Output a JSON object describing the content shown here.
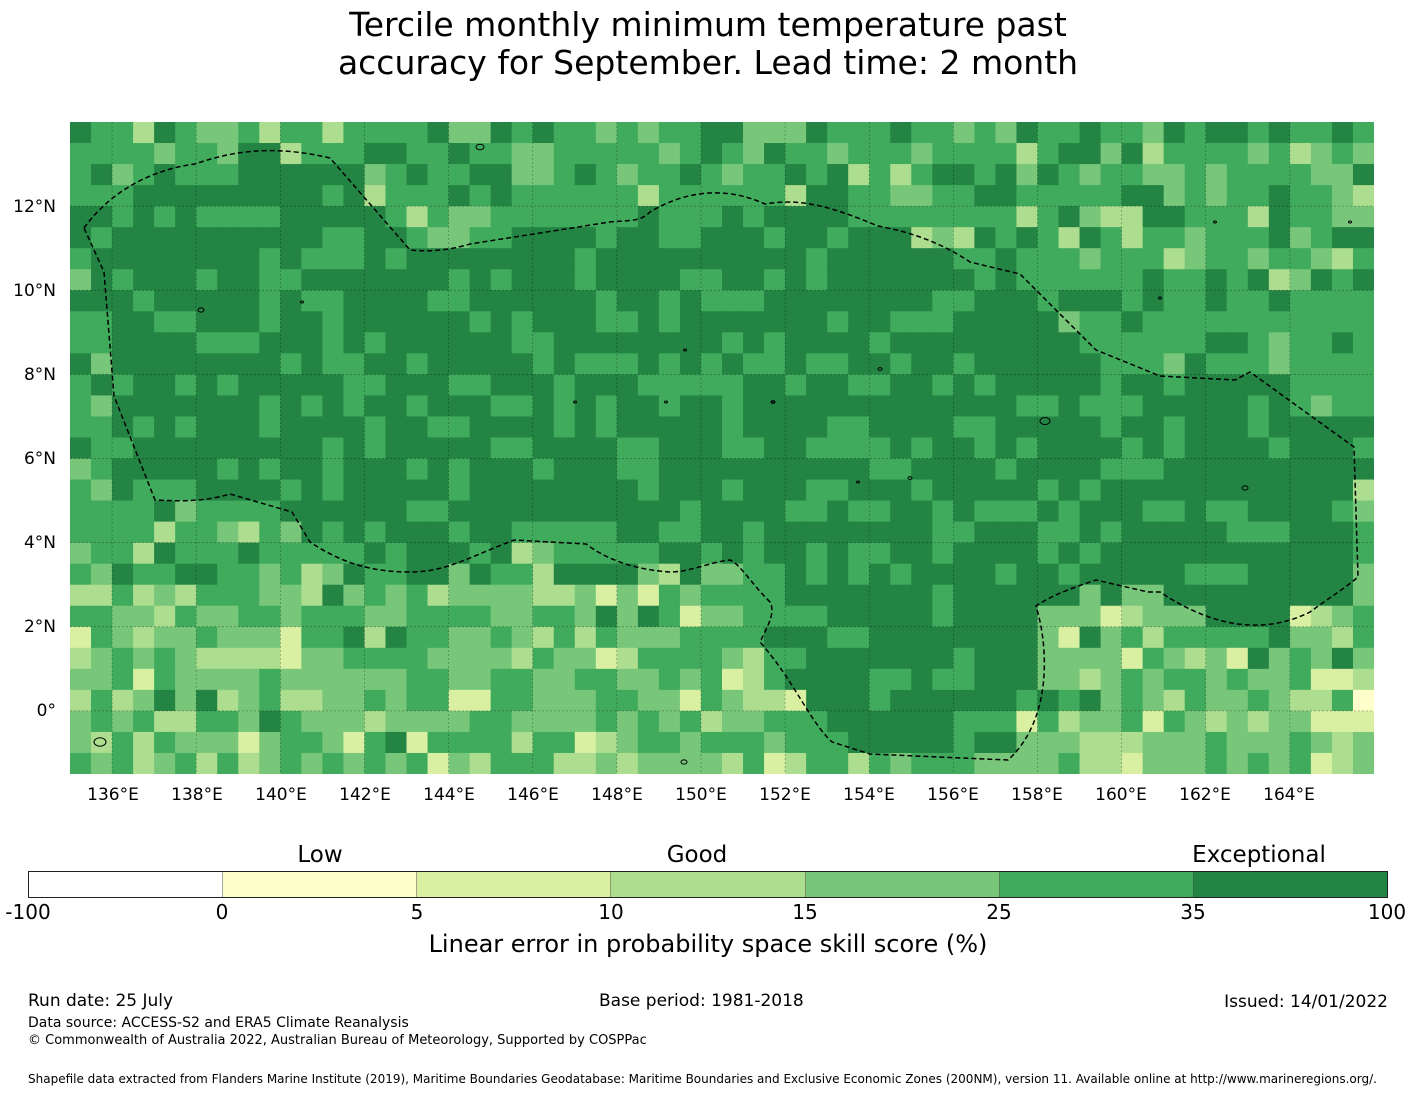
{
  "title": {
    "line1": "Tercile monthly minimum temperature past",
    "line2": "accuracy for September. Lead time: 2 month"
  },
  "map": {
    "lat_labels": [
      "12°N",
      "10°N",
      "8°N",
      "6°N",
      "4°N",
      "2°N",
      "0°"
    ],
    "lon_labels": [
      "136°E",
      "138°E",
      "140°E",
      "142°E",
      "144°E",
      "146°E",
      "148°E",
      "150°E",
      "152°E",
      "154°E",
      "156°E",
      "158°E",
      "160°E",
      "162°E",
      "164°E"
    ],
    "extent": {
      "lon_min": 135.0,
      "lon_max": 166.0,
      "lat_min": -1.5,
      "lat_max": 14.0
    },
    "grid_lines": "dashed",
    "boundary_style": "dashed black line (EEZ boundary)"
  },
  "colorbar": {
    "category_labels": [
      "Low",
      "Good",
      "Exceptional"
    ],
    "tick_labels": [
      "-100",
      "0",
      "5",
      "10",
      "15",
      "25",
      "35",
      "100"
    ],
    "colors": [
      "#ffffff",
      "#ffffcc",
      "#d9f0a3",
      "#addd8e",
      "#78c679",
      "#41ab5d",
      "#238443"
    ],
    "label": "Linear error in probability space skill score (%)"
  },
  "footer": {
    "run_date": "Run date: 25 July",
    "base_period": "Base period: 1981-2018",
    "issued": "Issued: 14/01/2022",
    "data_source": "Data source: ACCESS-S2 and ERA5 Climate Reanalysis",
    "copyright": "© Commonwealth of Australia 2022, Australian Bureau of Meteorology, Supported by COSPPac",
    "shapefile": "Shapefile data extracted from Flanders Marine Institute (2019), Maritime Boundaries Geodatabase: Maritime Boundaries and Exclusive Economic Zones (200NM), version 11. Available online at http://www.marineregions.org/."
  }
}
